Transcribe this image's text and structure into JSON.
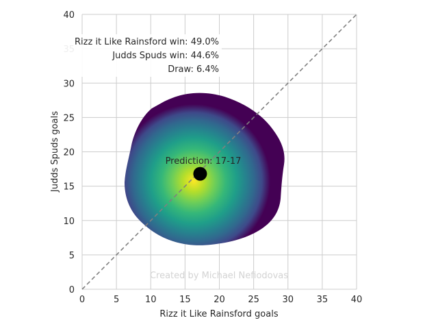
{
  "chart_data": {
    "type": "heatmap",
    "xlabel": "Rizz it Like Rainsford goals",
    "ylabel": "Judds Spuds goals",
    "xlim": [
      0,
      40
    ],
    "ylim": [
      0,
      40
    ],
    "xticks": [
      0,
      5,
      10,
      15,
      20,
      25,
      30,
      35,
      40
    ],
    "yticks": [
      0,
      5,
      10,
      15,
      20,
      25,
      30,
      35,
      40
    ],
    "grid": true,
    "colormap": "viridis",
    "density_center": [
      16.5,
      16
    ],
    "density_extent": {
      "x": [
        6.3,
        29.5
      ],
      "y": [
        6.4,
        28.6
      ]
    },
    "diagonal_line": {
      "from": [
        0,
        0
      ],
      "to": [
        40,
        40
      ],
      "style": "dashed",
      "color": "#808080"
    },
    "prediction_point": {
      "x": 17.2,
      "y": 16.8,
      "color": "#000000"
    },
    "annotations": {
      "prediction": "Prediction: 17-17",
      "home_win": "Rizz it Like Rainsford win: 49.0%",
      "away_win": "Judds Spuds win: 44.6%",
      "draw": "Draw: 6.4%"
    },
    "watermark": "Created by Michael Nefiodovas"
  }
}
